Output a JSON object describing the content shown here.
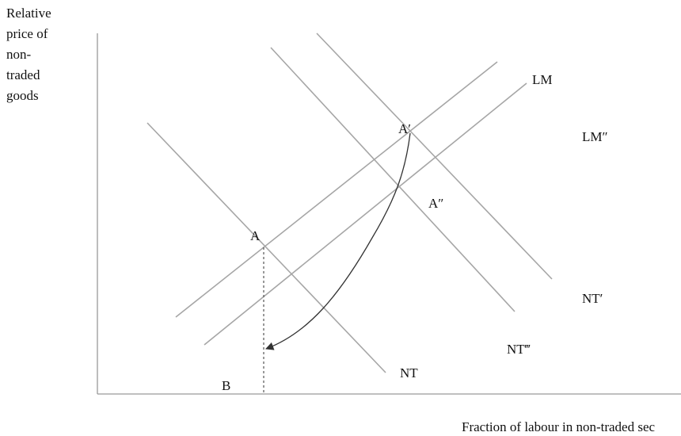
{
  "y_axis_label": [
    "Relative",
    "price of",
    "non-",
    "traded",
    "goods"
  ],
  "x_axis_label": "Fraction of labour in non-traded sec",
  "curves": {
    "nt": "NT",
    "nt_prime": "NT′",
    "nt_triple": "NT‴",
    "lm": "LM",
    "lm_double": "LM″"
  },
  "points": {
    "a": "A",
    "a_prime": "A′",
    "a_double": "A″",
    "b": "B"
  }
}
